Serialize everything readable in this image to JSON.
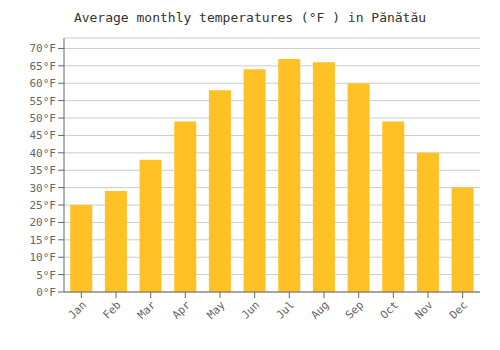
{
  "chart_data": {
    "type": "bar",
    "title": "Average monthly temperatures (°F ) in Pănătău",
    "categories": [
      "Jan",
      "Feb",
      "Mar",
      "Apr",
      "May",
      "Jun",
      "Jul",
      "Aug",
      "Sep",
      "Oct",
      "Nov",
      "Dec"
    ],
    "values": [
      25,
      29,
      38,
      49,
      58,
      64,
      67,
      66,
      60,
      49,
      40,
      30
    ],
    "color": "#FFC125",
    "ylim": [
      0,
      73
    ],
    "yticks": [
      {
        "value": 0,
        "label": "0°F"
      },
      {
        "value": 5,
        "label": "5°F"
      },
      {
        "value": 10,
        "label": "10°F"
      },
      {
        "value": 15,
        "label": "15°F"
      },
      {
        "value": 20,
        "label": "20°F"
      },
      {
        "value": 25,
        "label": "25°F"
      },
      {
        "value": 30,
        "label": "30°F"
      },
      {
        "value": 35,
        "label": "35°F"
      },
      {
        "value": 40,
        "label": "40°F"
      },
      {
        "value": 45,
        "label": "45°F"
      },
      {
        "value": 50,
        "label": "50°F"
      },
      {
        "value": 55,
        "label": "55°F"
      },
      {
        "value": 60,
        "label": "60°F"
      },
      {
        "value": 65,
        "label": "65°F"
      },
      {
        "value": 70,
        "label": "70°F"
      }
    ],
    "grid": true
  }
}
